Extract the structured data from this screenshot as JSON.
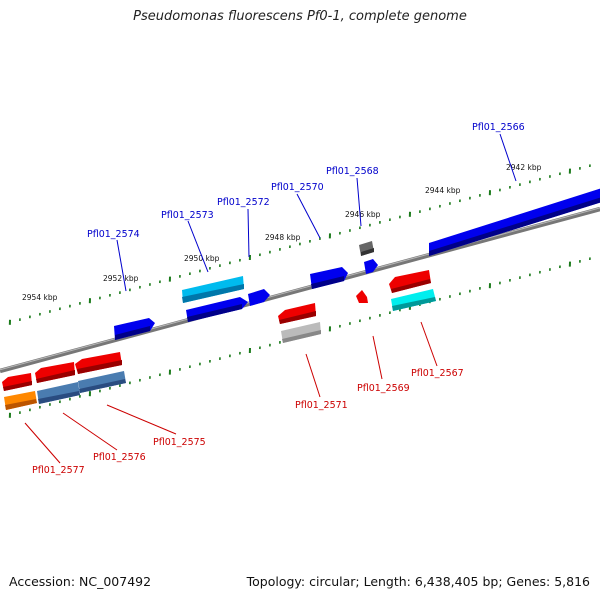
{
  "title": "Pseudomonas fluorescens Pf0-1, complete genome",
  "footer": {
    "accession": "Accession: NC_007492",
    "stats": "Topology: circular; Length: 6,438,405 bp; Genes: 5,816"
  },
  "ticks": [
    "2942 kbp",
    "2944 kbp",
    "2946 kbp",
    "2948 kbp",
    "2950 kbp",
    "2952 kbp",
    "2954 kbp"
  ],
  "colors": {
    "forward": "#0000ee",
    "forward_light": "#00bbee",
    "forward_gray": "#555555",
    "reverse": "#ee0000",
    "reverse_cyan": "#00dddd",
    "reverse_steel": "#4a7cb0",
    "reverse_orange": "#ff8800",
    "reverse_gray": "#aaaaaa",
    "tick": "#1a7a1a",
    "backbone": "#777777"
  },
  "forward_genes": [
    {
      "label": "Pfl01_2566",
      "color": "#0000ee"
    },
    {
      "label": "Pfl01_2568",
      "color": "#555555"
    },
    {
      "label": "Pfl01_2570",
      "color": "#0000ee"
    },
    {
      "label": "Pfl01_2572",
      "color": "#0000ee"
    },
    {
      "label": "Pfl01_2573",
      "color": "#00bbee"
    },
    {
      "label": "Pfl01_2574",
      "color": "#0000ee"
    }
  ],
  "reverse_genes": [
    {
      "label": "Pfl01_2567",
      "color": "#00dddd"
    },
    {
      "label": "Pfl01_2569",
      "color": "#ee0000"
    },
    {
      "label": "Pfl01_2571",
      "color": "#aaaaaa"
    },
    {
      "label": "Pfl01_2575",
      "color": "#4a7cb0"
    },
    {
      "label": "Pfl01_2576",
      "color": "#4a7cb0"
    },
    {
      "label": "Pfl01_2577",
      "color": "#ff8800"
    }
  ]
}
